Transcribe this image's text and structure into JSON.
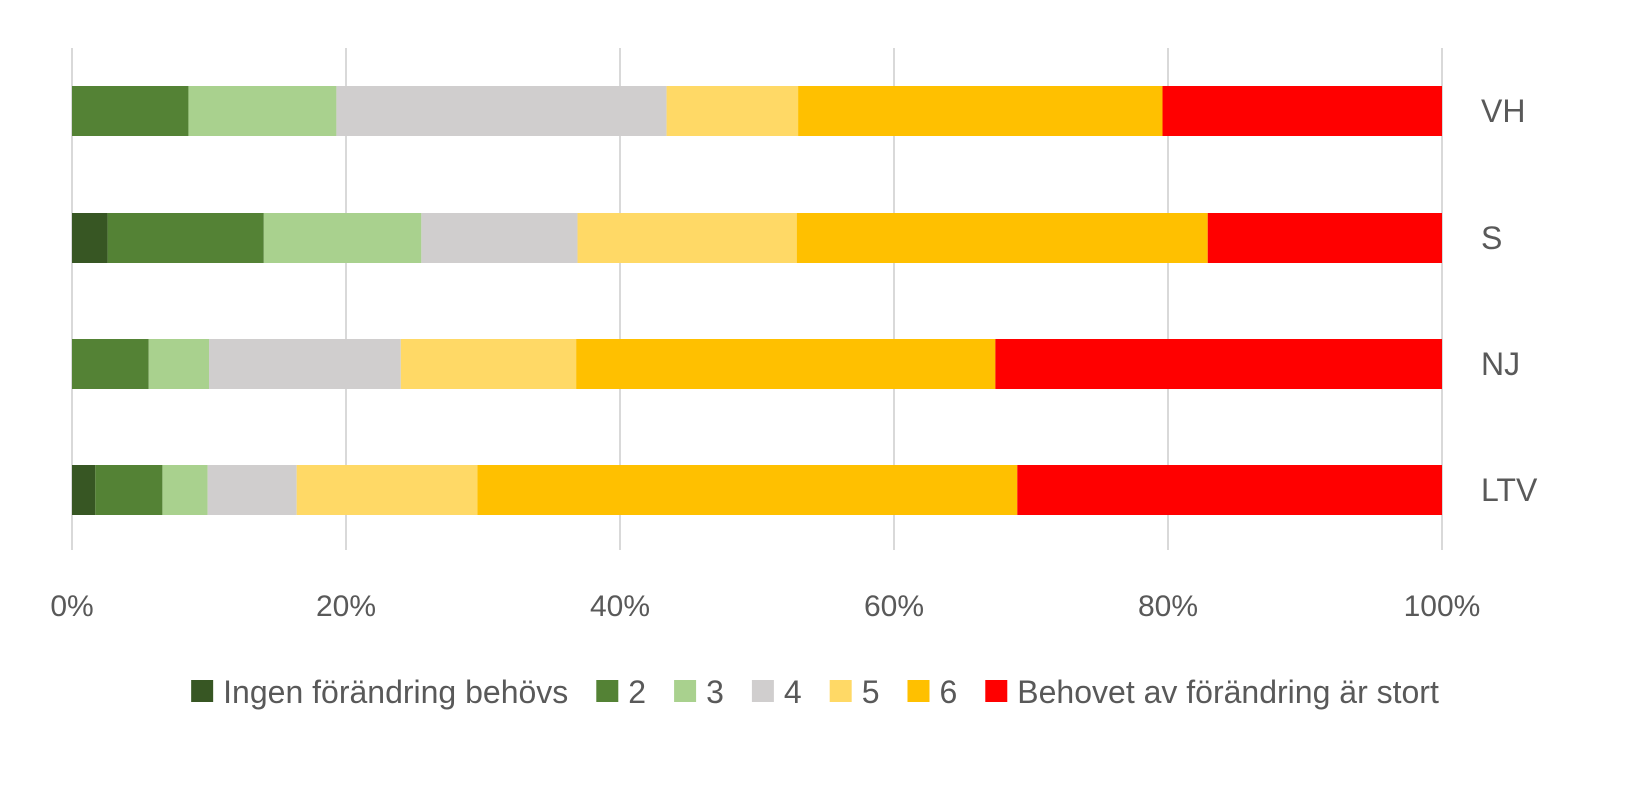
{
  "chart_data": {
    "type": "bar",
    "orientation": "horizontal",
    "stacked": "percent",
    "categories": [
      "VH",
      "S",
      "NJ",
      "LTV"
    ],
    "series": [
      {
        "name": "Ingen förändring behövs",
        "color": "#375623",
        "values": [
          0.0,
          2.6,
          0.0,
          1.7
        ]
      },
      {
        "name": "2",
        "color": "#548235",
        "values": [
          8.5,
          11.4,
          5.6,
          4.9
        ]
      },
      {
        "name": "3",
        "color": "#A9D18E",
        "values": [
          10.8,
          11.5,
          4.4,
          3.3
        ]
      },
      {
        "name": "4",
        "color": "#D0CECE",
        "values": [
          24.1,
          11.4,
          14.0,
          6.5
        ]
      },
      {
        "name": "5",
        "color": "#FFD966",
        "values": [
          9.6,
          16.0,
          12.8,
          13.2
        ]
      },
      {
        "name": "6",
        "color": "#FFC000",
        "values": [
          26.6,
          30.0,
          30.6,
          39.4
        ]
      },
      {
        "name": "Behovet av förändring är stort",
        "color": "#FF0000",
        "values": [
          20.4,
          17.1,
          32.6,
          31.0
        ]
      }
    ],
    "xlim": [
      0,
      100
    ],
    "x_ticks": [
      "0%",
      "20%",
      "40%",
      "60%",
      "80%",
      "100%"
    ],
    "grid": "vertical",
    "category_labels_position": "right",
    "legend_position": "bottom"
  }
}
